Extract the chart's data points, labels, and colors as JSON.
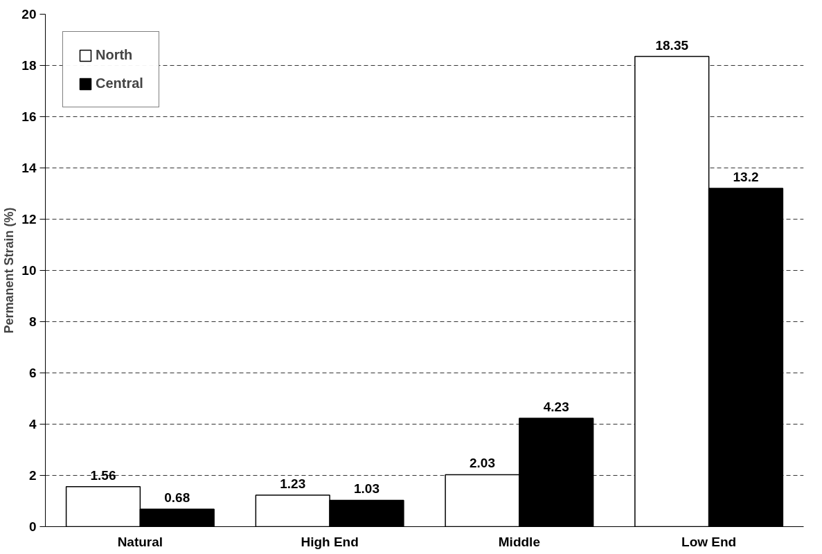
{
  "chart_data": {
    "type": "bar",
    "ylabel": "Permanent Strain (%)",
    "categories": [
      "Natural",
      "High End",
      "Middle",
      "Low End"
    ],
    "series": [
      {
        "name": "North",
        "color": "#ffffff",
        "values": [
          1.56,
          1.23,
          2.03,
          18.35
        ]
      },
      {
        "name": "Central",
        "color": "#000000",
        "values": [
          0.68,
          1.03,
          4.23,
          13.2
        ]
      }
    ],
    "ylim": [
      0,
      20
    ],
    "yticks": [
      0,
      2,
      4,
      6,
      8,
      10,
      12,
      14,
      16,
      18,
      20
    ],
    "grid": "y",
    "legend": "top left",
    "data_labels": true
  }
}
